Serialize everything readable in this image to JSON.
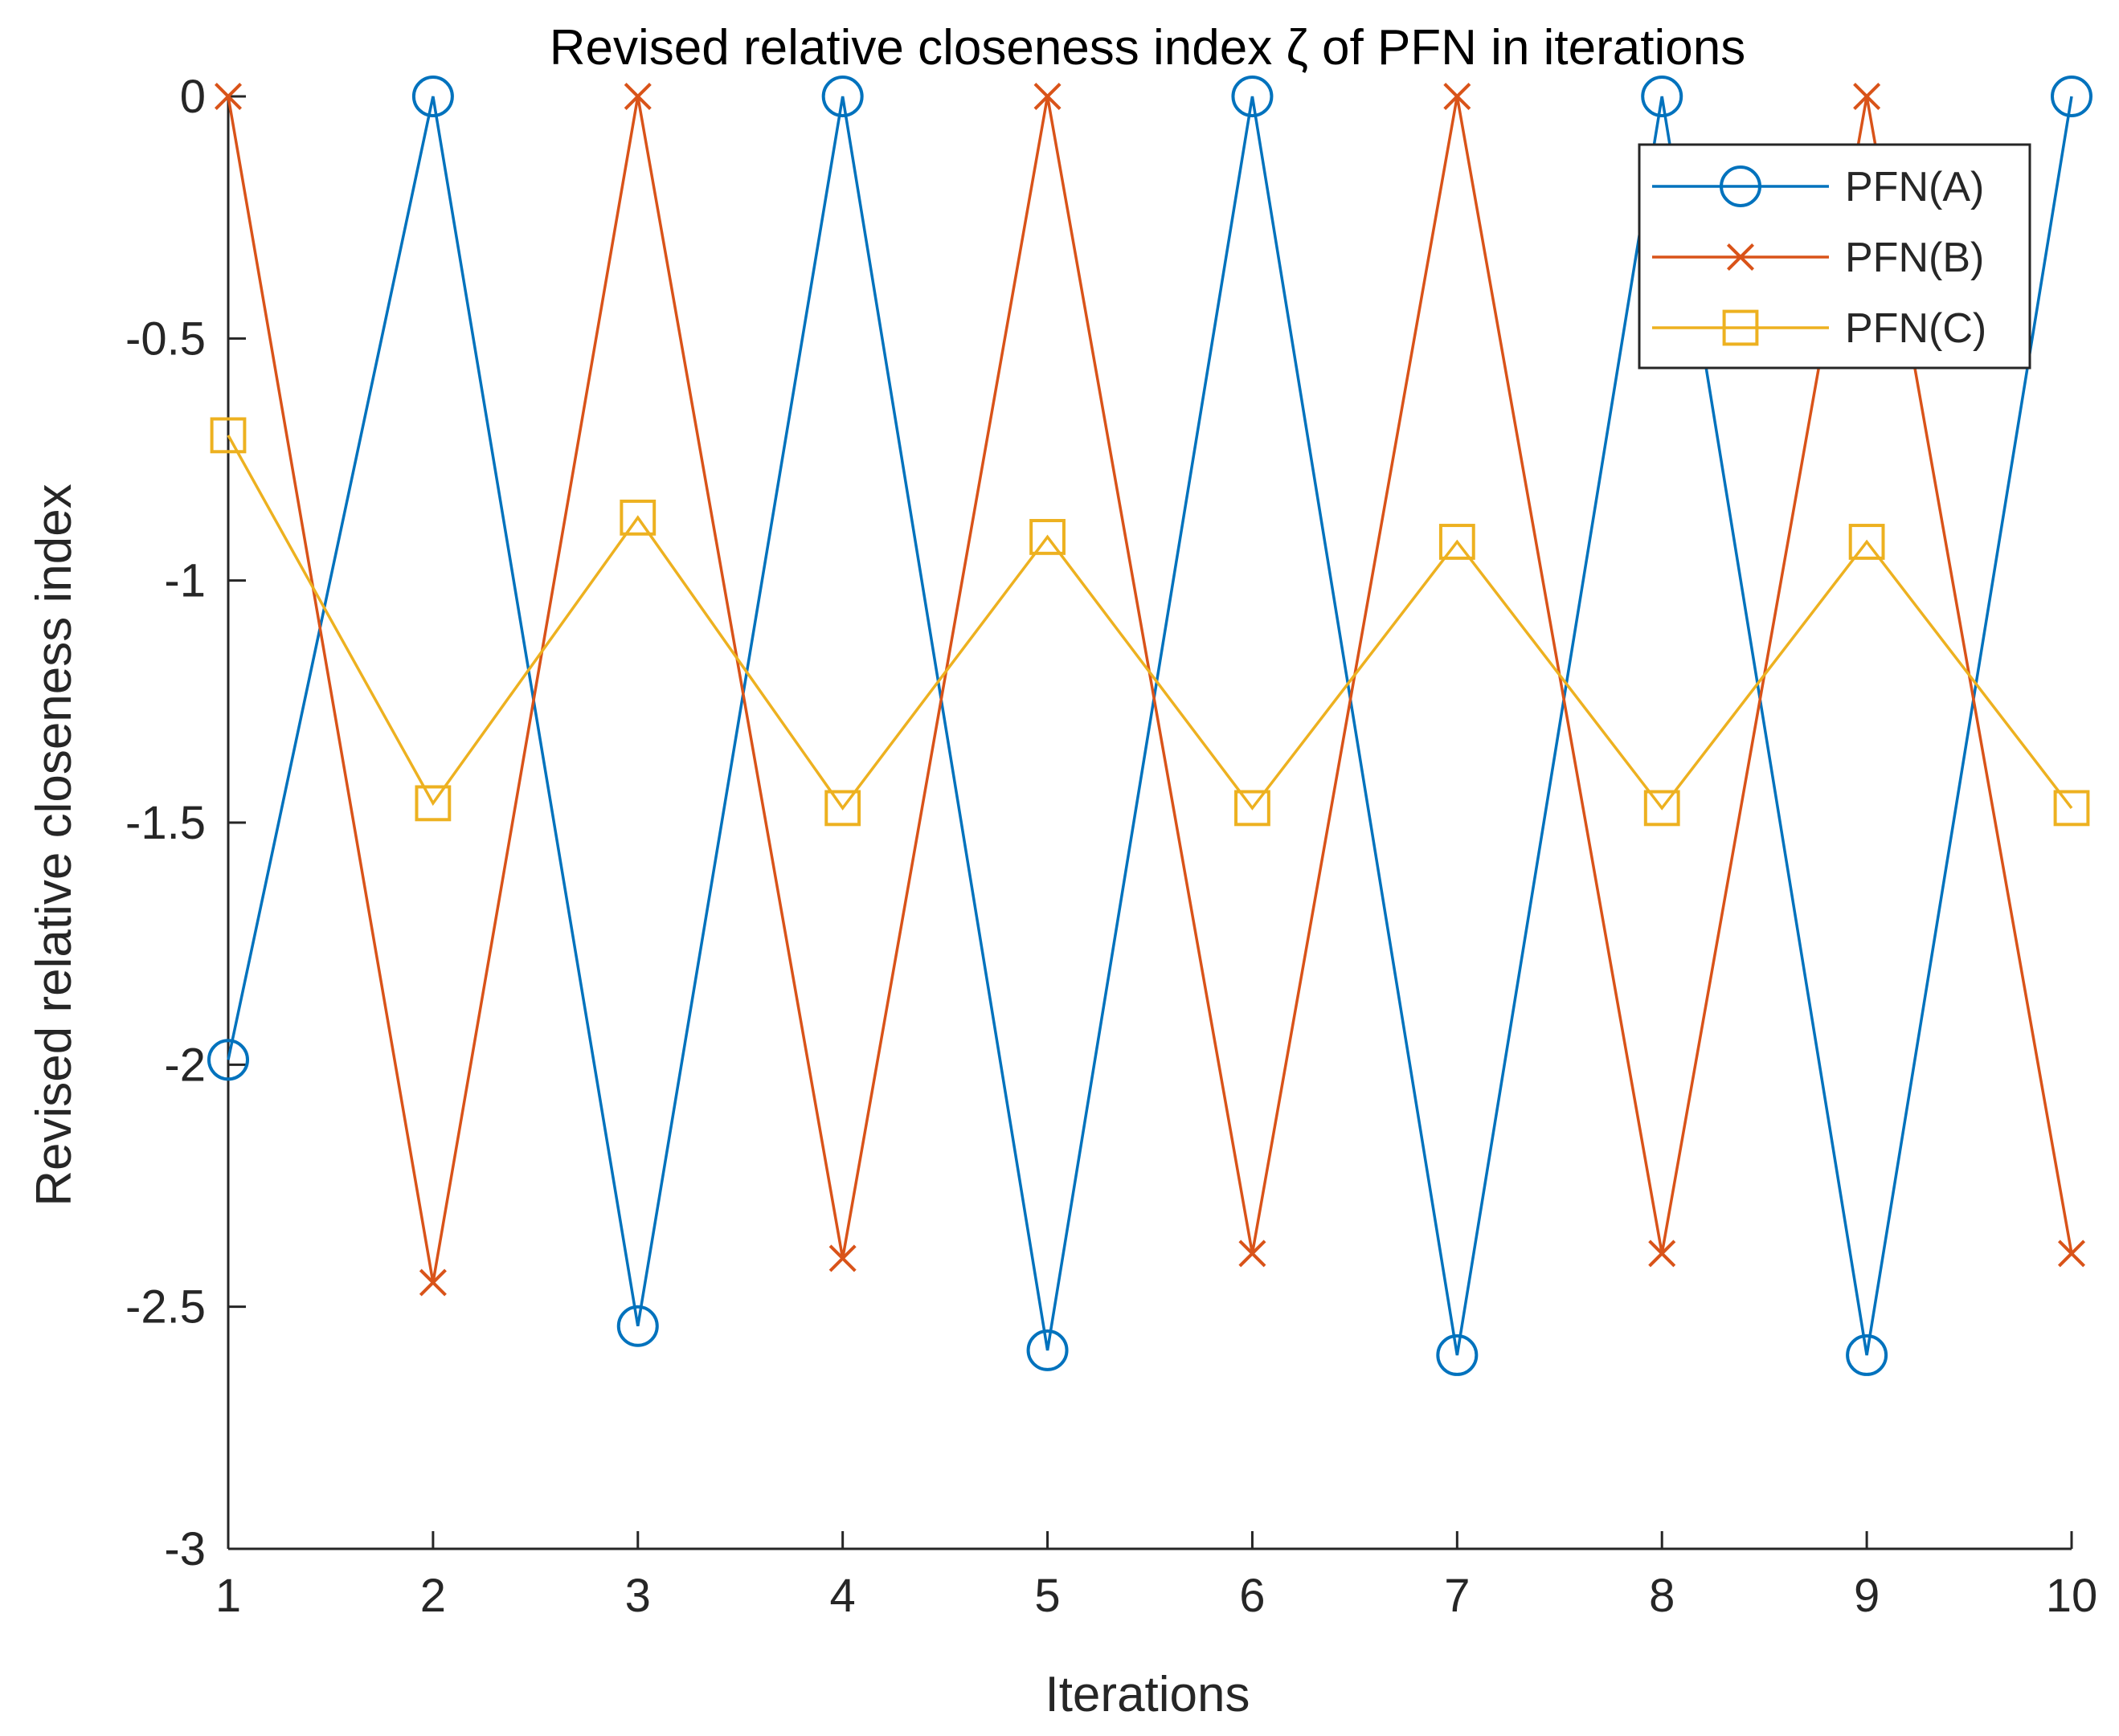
{
  "chart_data": {
    "type": "line",
    "title": "Revised relative closeness index ζ of PFN in iterations",
    "xlabel": "Iterations",
    "ylabel": "Revised relative closeness index",
    "x": [
      1,
      2,
      3,
      4,
      5,
      6,
      7,
      8,
      9,
      10
    ],
    "xlim": [
      1,
      10
    ],
    "ylim": [
      -3,
      0
    ],
    "xticks": [
      1,
      2,
      3,
      4,
      5,
      6,
      7,
      8,
      9,
      10
    ],
    "yticks": [
      0,
      -0.5,
      -1,
      -1.5,
      -2,
      -2.5,
      -3
    ],
    "xtick_labels": [
      "1",
      "2",
      "3",
      "4",
      "5",
      "6",
      "7",
      "8",
      "9",
      "10"
    ],
    "ytick_labels": [
      "0",
      "-0.5",
      "-1",
      "-1.5",
      "-2",
      "-2.5",
      "-3"
    ],
    "grid": false,
    "legend_position": "top-right",
    "series": [
      {
        "name": "PFN(A)",
        "color": "#0072BD",
        "marker": "circle",
        "values": [
          -1.99,
          0,
          -2.54,
          0,
          -2.59,
          0,
          -2.6,
          0,
          -2.6,
          0
        ]
      },
      {
        "name": "PFN(B)",
        "color": "#D95319",
        "marker": "x",
        "values": [
          0,
          -2.45,
          0,
          -2.4,
          0,
          -2.39,
          0,
          -2.39,
          0,
          -2.39
        ]
      },
      {
        "name": "PFN(C)",
        "color": "#EDB120",
        "marker": "square",
        "values": [
          -0.7,
          -1.46,
          -0.87,
          -1.47,
          -0.91,
          -1.47,
          -0.92,
          -1.47,
          -0.92,
          -1.47
        ]
      }
    ]
  }
}
